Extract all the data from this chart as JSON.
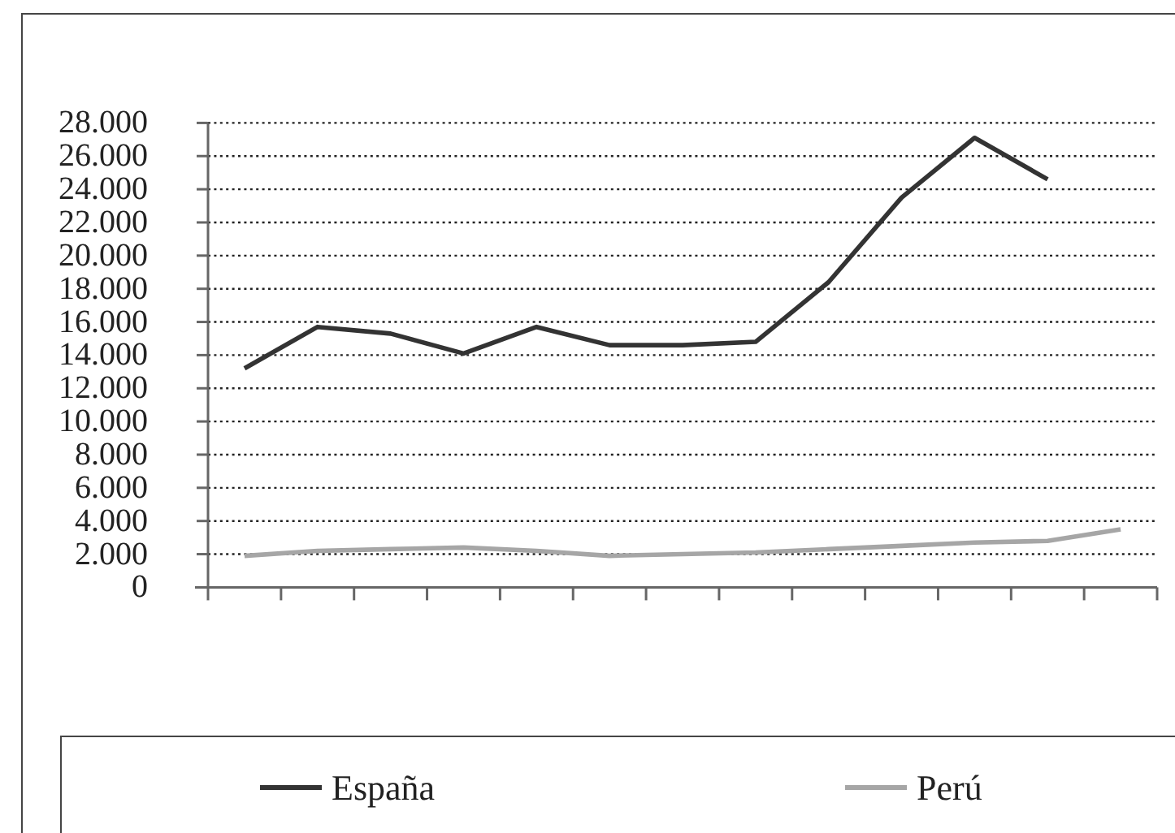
{
  "chart_data": {
    "type": "line",
    "categories": [
      null,
      null,
      null,
      null,
      null,
      null,
      null,
      null,
      null,
      null,
      null,
      null,
      null
    ],
    "series": [
      {
        "name": "España",
        "color": "#333333",
        "values": [
          13200,
          15700,
          15300,
          14100,
          15700,
          14600,
          14600,
          14800,
          18400,
          23500,
          27100,
          24600,
          null
        ]
      },
      {
        "name": "Perú",
        "color": "#a6a6a6",
        "values": [
          1900,
          2200,
          2300,
          2400,
          2200,
          1900,
          2000,
          2100,
          2300,
          2500,
          2700,
          2800,
          3500
        ]
      }
    ],
    "ylim": [
      0,
      28000
    ],
    "yticks": [
      0,
      {
        "value": 2000,
        "label": "2.000"
      },
      {
        "value": 4000,
        "label": "4.000"
      },
      {
        "value": 6000,
        "label": "6.000"
      },
      {
        "value": 8000,
        "label": "8.000"
      },
      {
        "value": 10000,
        "label": "10.000"
      },
      {
        "value": 12000,
        "label": "12.000"
      },
      {
        "value": 14000,
        "label": "14.000"
      },
      {
        "value": 16000,
        "label": "16.000"
      },
      {
        "value": 18000,
        "label": "18.000"
      },
      {
        "value": 20000,
        "label": "20.000"
      },
      {
        "value": 22000,
        "label": "22.000"
      },
      {
        "value": 24000,
        "label": "24.000"
      },
      {
        "value": 26000,
        "label": "26.000"
      },
      {
        "value": 28000,
        "label": "28.000"
      }
    ],
    "grid": "y",
    "legend": "bottom",
    "tick_labels": "y",
    "line_style": "solid"
  }
}
